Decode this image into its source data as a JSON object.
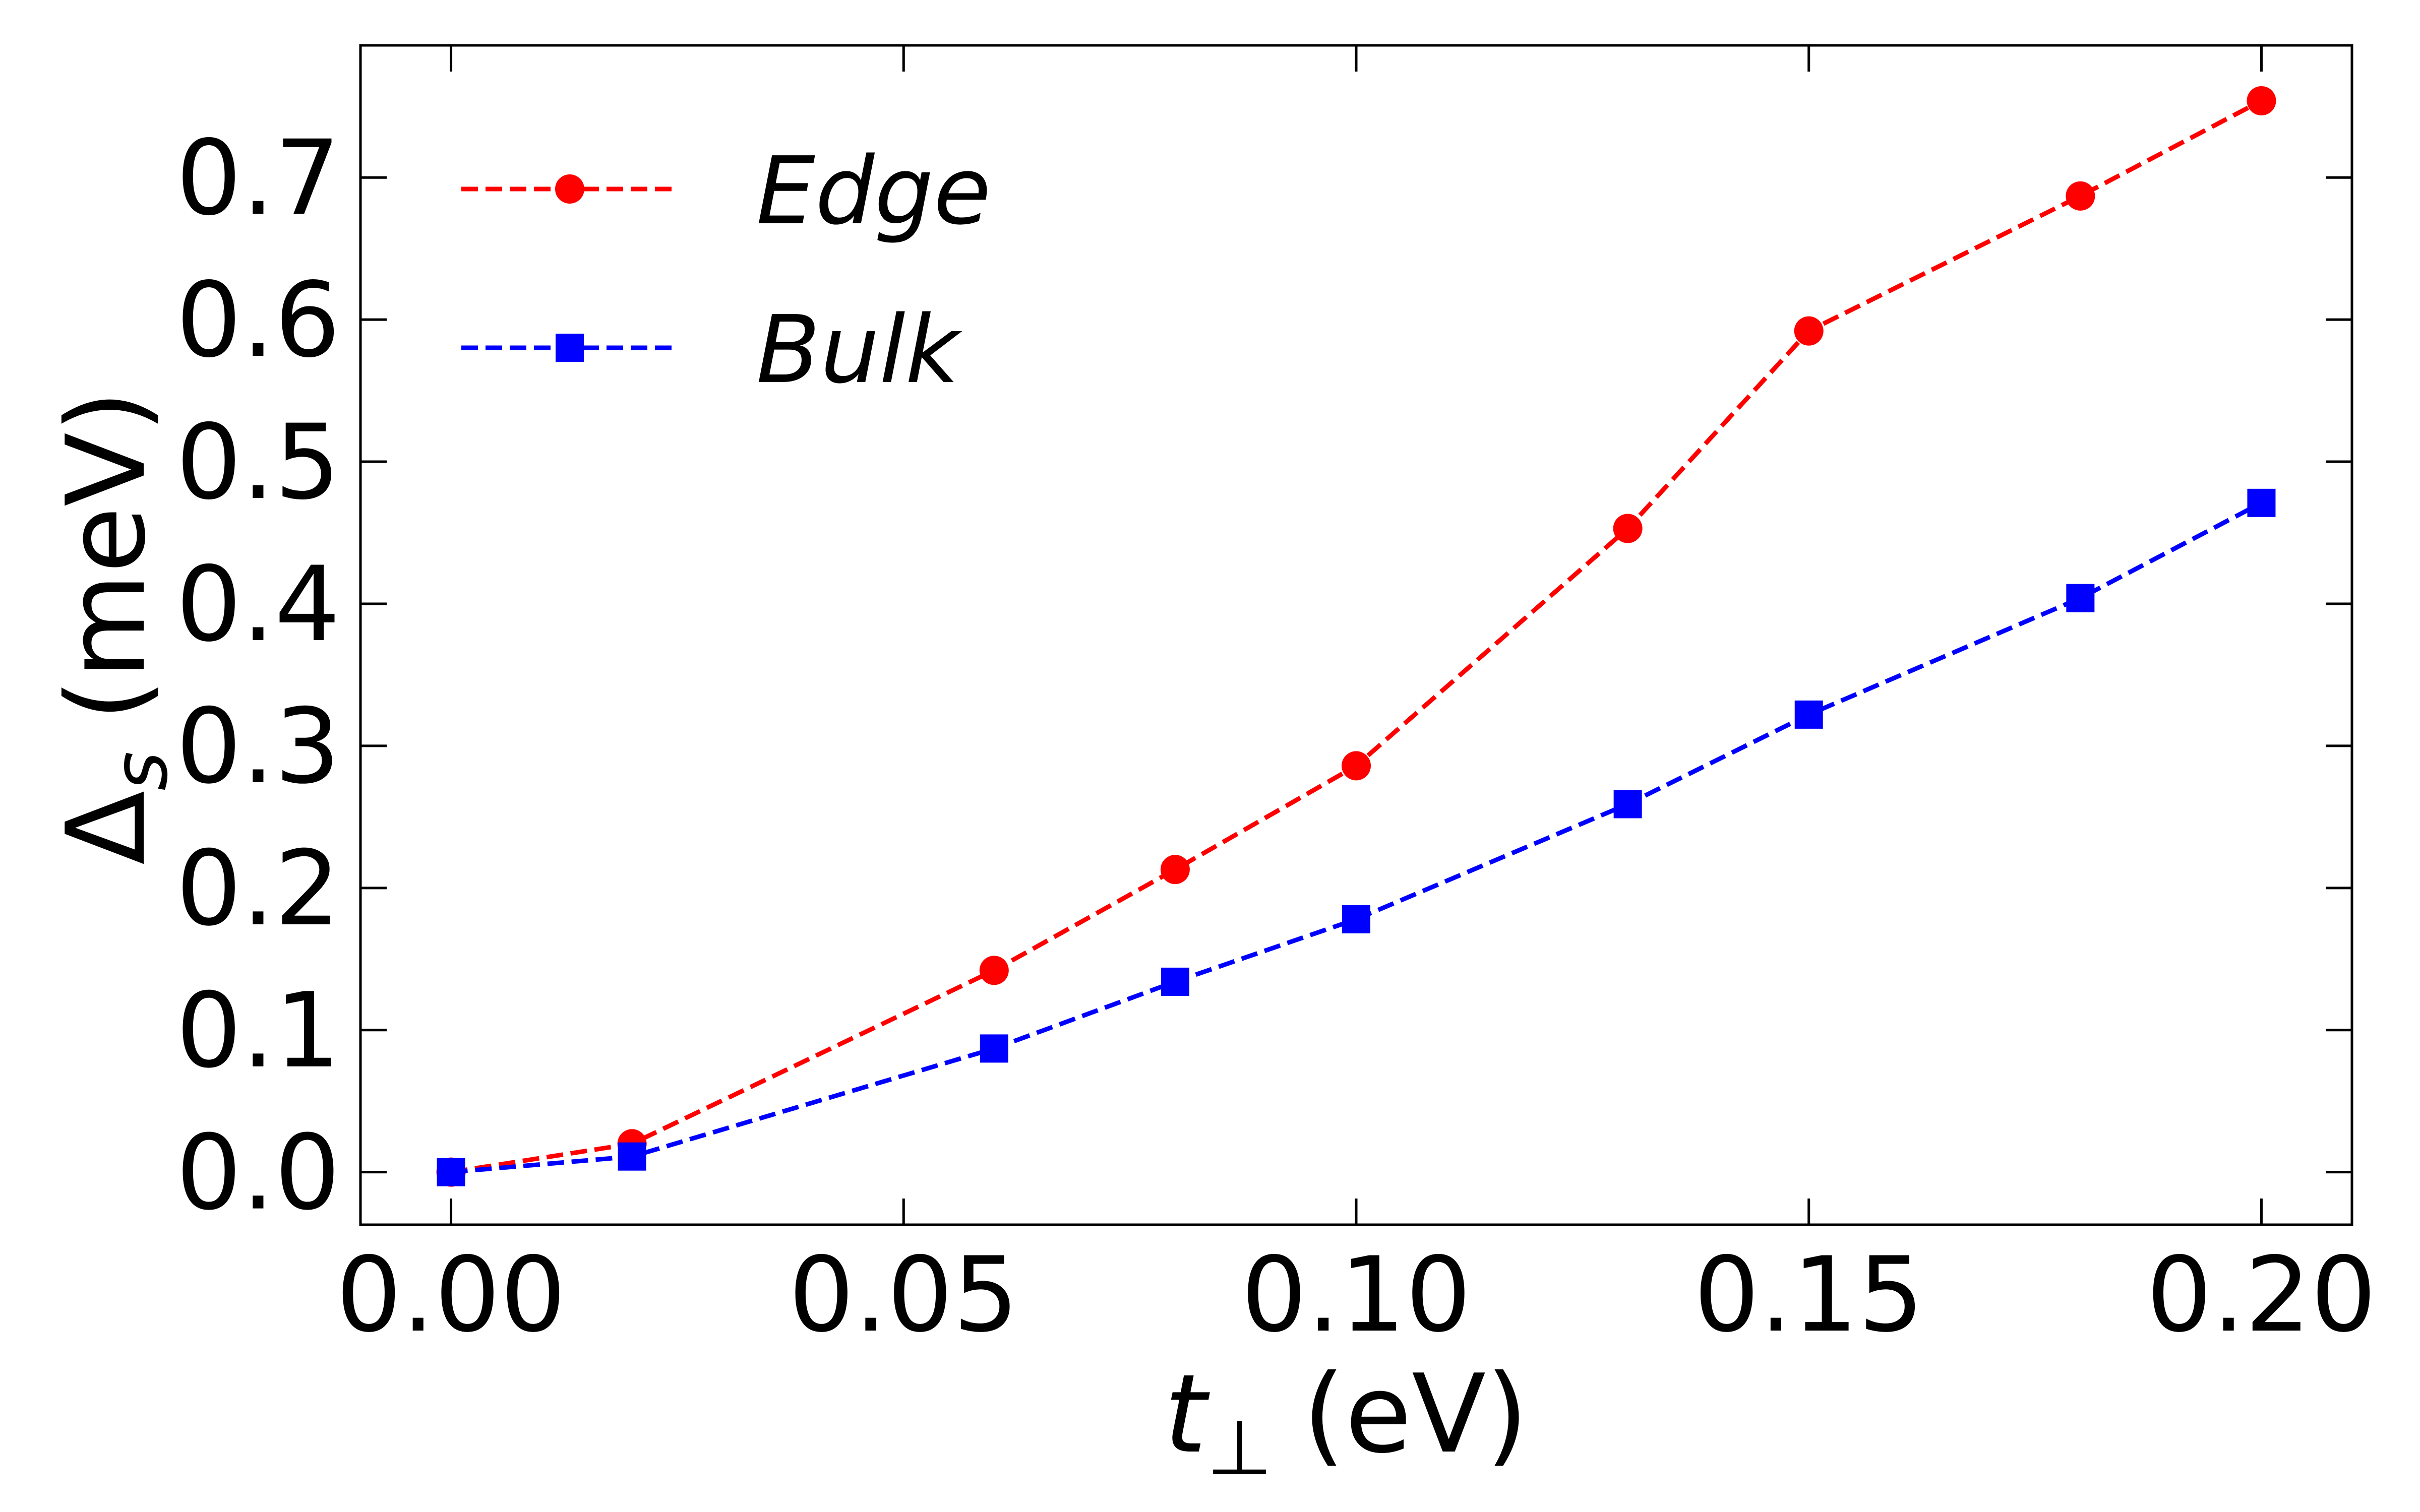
{
  "chart_data": {
    "type": "line",
    "title": "",
    "xlabel": {
      "var": "t",
      "sub": "⊥",
      "unit": "(eV)"
    },
    "ylabel": {
      "var": "Δ",
      "sub": "s",
      "unit": "(meV)"
    },
    "xlim": [
      -0.01,
      0.21
    ],
    "ylim": [
      -0.037,
      0.793
    ],
    "xticks": [
      0.0,
      0.05,
      0.1,
      0.15,
      0.2
    ],
    "xtick_labels": [
      "0.00",
      "0.05",
      "0.10",
      "0.15",
      "0.20"
    ],
    "yticks": [
      0.0,
      0.1,
      0.2,
      0.3,
      0.4,
      0.5,
      0.6,
      0.7
    ],
    "ytick_labels": [
      "0.0",
      "0.1",
      "0.2",
      "0.3",
      "0.4",
      "0.5",
      "0.6",
      "0.7"
    ],
    "grid": false,
    "legend_position": "top-left",
    "series": [
      {
        "name": "Edge",
        "color": "#ff0000",
        "marker": "circle",
        "linestyle": "dashed",
        "x": [
          0.0,
          0.02,
          0.06,
          0.08,
          0.1,
          0.13,
          0.15,
          0.18,
          0.2
        ],
        "y": [
          0.0,
          0.02,
          0.142,
          0.213,
          0.286,
          0.453,
          0.592,
          0.687,
          0.754
        ]
      },
      {
        "name": "Bulk",
        "color": "#0000ff",
        "marker": "square",
        "linestyle": "dashed",
        "x": [
          0.0,
          0.02,
          0.06,
          0.08,
          0.1,
          0.13,
          0.15,
          0.18,
          0.2
        ],
        "y": [
          0.0,
          0.011,
          0.087,
          0.134,
          0.178,
          0.259,
          0.322,
          0.404,
          0.471
        ]
      }
    ]
  }
}
